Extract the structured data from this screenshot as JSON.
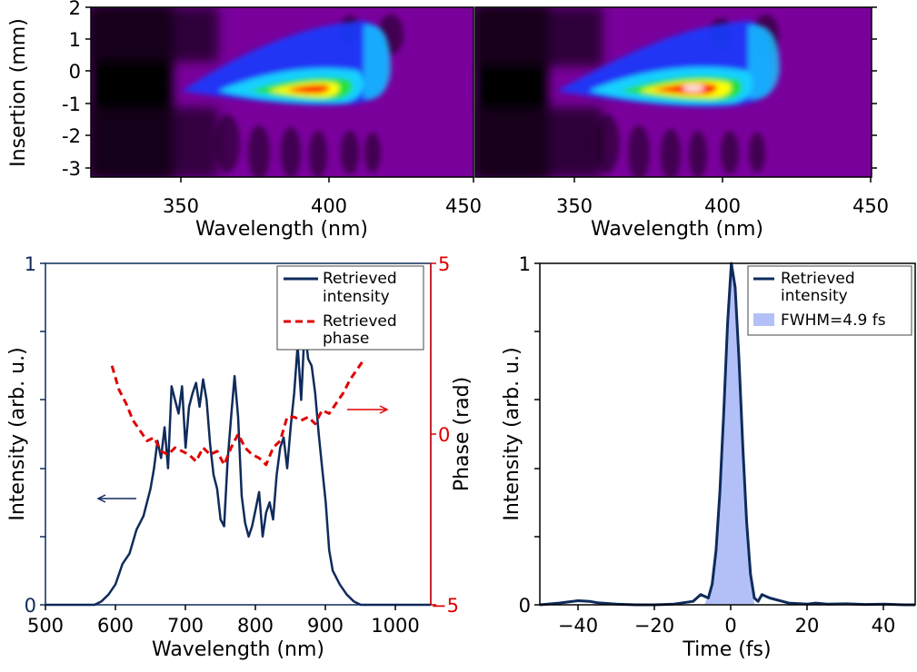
{
  "chart_data": [
    {
      "id": "map1",
      "type": "heatmap",
      "xlabel": "Wavelength (nm)",
      "ylabel": "Insertion (mm)",
      "xlim": [
        322,
        450
      ],
      "ylim": [
        -3.4,
        2.0
      ],
      "xticks": [
        350,
        400,
        450
      ],
      "yticks": [
        2,
        1,
        0,
        -1,
        -2,
        -3
      ],
      "colormap": [
        "#000000",
        "#7d00a6",
        "#1a3cff",
        "#18d0ff",
        "#20e040",
        "#ffff00",
        "#ff2000",
        "#ffffff"
      ],
      "peak_wavelength_nm": 385,
      "peak_insertion_mm": -0.4
    },
    {
      "id": "map2",
      "type": "heatmap",
      "xlabel": "Wavelength (nm)",
      "xlim": [
        322,
        450
      ],
      "ylim": [
        -3.4,
        2.0
      ],
      "xticks": [
        350,
        400,
        450
      ],
      "yticks": [
        2,
        1,
        0,
        -1,
        -2,
        -3
      ],
      "peak_wavelength_nm": 385,
      "peak_insertion_mm": -0.4
    },
    {
      "id": "spectrum",
      "type": "line",
      "xlabel": "Wavelength (nm)",
      "ylabel": "Intensity (arb. u.)",
      "y2label": "Phase (rad)",
      "xlim": [
        500,
        1050
      ],
      "ylim": [
        0,
        1
      ],
      "y2lim": [
        -5,
        5
      ],
      "xticks": [
        500,
        600,
        700,
        800,
        900,
        1000
      ],
      "yticks": [
        0,
        0.2,
        0.4,
        0.6,
        0.8,
        1
      ],
      "ytick_labels": [
        "0",
        "",
        "",
        "",
        "",
        "1"
      ],
      "y2ticks": [
        -5,
        0,
        5
      ],
      "ytick_colors": {
        "left": "#0f2b5b",
        "right": "#e00000"
      },
      "legend_position": "top-right",
      "series": [
        {
          "name": "Retrieved intensity",
          "color": "#0f2b5b",
          "axis": "left",
          "x": [
            500,
            520,
            540,
            560,
            570,
            580,
            590,
            600,
            610,
            620,
            630,
            640,
            650,
            655,
            660,
            665,
            670,
            675,
            680,
            685,
            690,
            695,
            700,
            705,
            710,
            715,
            720,
            725,
            730,
            735,
            740,
            745,
            750,
            755,
            760,
            765,
            770,
            775,
            780,
            785,
            790,
            795,
            800,
            805,
            810,
            815,
            820,
            825,
            830,
            835,
            840,
            845,
            850,
            855,
            860,
            865,
            870,
            875,
            880,
            885,
            890,
            895,
            900,
            905,
            910,
            920,
            930,
            940,
            950,
            960,
            980,
            1000,
            1020,
            1050
          ],
          "y": [
            0.0,
            0.0,
            0.0,
            0.0,
            0.0,
            0.01,
            0.03,
            0.06,
            0.12,
            0.15,
            0.22,
            0.26,
            0.34,
            0.4,
            0.48,
            0.43,
            0.52,
            0.4,
            0.64,
            0.6,
            0.56,
            0.64,
            0.46,
            0.58,
            0.62,
            0.65,
            0.58,
            0.66,
            0.6,
            0.47,
            0.38,
            0.34,
            0.25,
            0.23,
            0.42,
            0.55,
            0.67,
            0.55,
            0.32,
            0.24,
            0.2,
            0.23,
            0.28,
            0.33,
            0.2,
            0.27,
            0.3,
            0.25,
            0.38,
            0.46,
            0.49,
            0.4,
            0.52,
            0.62,
            0.76,
            0.6,
            0.81,
            0.72,
            0.7,
            0.62,
            0.5,
            0.4,
            0.3,
            0.16,
            0.1,
            0.06,
            0.03,
            0.01,
            0.0,
            0.0,
            0.0,
            0.0,
            0.0,
            0.0
          ]
        },
        {
          "name": "Retrieved phase",
          "color": "#e00000",
          "axis": "right",
          "x": [
            595,
            605,
            615,
            625,
            635,
            645,
            655,
            665,
            675,
            685,
            695,
            705,
            715,
            725,
            735,
            745,
            755,
            765,
            775,
            785,
            795,
            805,
            815,
            825,
            835,
            845,
            855,
            865,
            875,
            885,
            895,
            905,
            915,
            925,
            935,
            945,
            955
          ],
          "y": [
            2.0,
            1.3,
            0.9,
            0.4,
            0.1,
            -0.2,
            -0.1,
            -0.5,
            -0.6,
            -0.4,
            -0.5,
            -0.6,
            -0.8,
            -0.4,
            -0.6,
            -0.5,
            -0.9,
            -0.4,
            0.0,
            -0.4,
            -0.6,
            -0.7,
            -0.9,
            -0.4,
            -0.2,
            0.5,
            0.5,
            0.4,
            0.5,
            0.3,
            0.7,
            0.6,
            0.9,
            1.2,
            1.6,
            1.9,
            2.2
          ]
        }
      ]
    },
    {
      "id": "pulse",
      "type": "line",
      "xlabel": "Time (fs)",
      "ylabel": "Intensity (arb. u.)",
      "xlim": [
        -50,
        48
      ],
      "ylim": [
        0,
        1
      ],
      "xticks": [
        -40,
        -20,
        0,
        20,
        40
      ],
      "xtick_labels": [
        "−40",
        "−20",
        "0",
        "20",
        "40"
      ],
      "yticks": [
        0,
        0.2,
        0.4,
        0.6,
        0.8,
        1
      ],
      "ytick_labels": [
        "0",
        "",
        "",
        "",
        "",
        "1"
      ],
      "legend_position": "top-right",
      "series": [
        {
          "name": "Retrieved intensity",
          "color": "#0f2b5b",
          "x": [
            -50,
            -45,
            -40,
            -37,
            -35,
            -30,
            -25,
            -20,
            -15,
            -10,
            -8,
            -6,
            -5,
            -4,
            -3,
            -2,
            -1,
            0,
            1,
            2,
            3,
            4,
            5,
            6,
            7,
            8,
            10,
            15,
            20,
            22,
            25,
            30,
            35,
            40,
            45,
            48
          ],
          "y": [
            0.0,
            0.005,
            0.012,
            0.01,
            0.006,
            0.002,
            0.0,
            0.0,
            0.002,
            0.01,
            0.03,
            0.02,
            0.06,
            0.16,
            0.33,
            0.56,
            0.82,
            1.0,
            0.93,
            0.72,
            0.46,
            0.24,
            0.09,
            0.02,
            0.01,
            0.03,
            0.02,
            0.005,
            0.002,
            0.005,
            0.002,
            0.003,
            0.001,
            0.002,
            0.0,
            0.0
          ]
        },
        {
          "name": "FWHM=4.9 fs",
          "color": "#b3c0f7",
          "fill": true,
          "x": [
            -7,
            -5,
            -4,
            -3,
            -2,
            -1,
            0,
            1,
            2,
            3,
            4,
            5,
            6
          ],
          "y": [
            0.0,
            0.06,
            0.16,
            0.33,
            0.56,
            0.82,
            1.0,
            0.93,
            0.72,
            0.46,
            0.24,
            0.09,
            0.0
          ]
        }
      ]
    }
  ]
}
